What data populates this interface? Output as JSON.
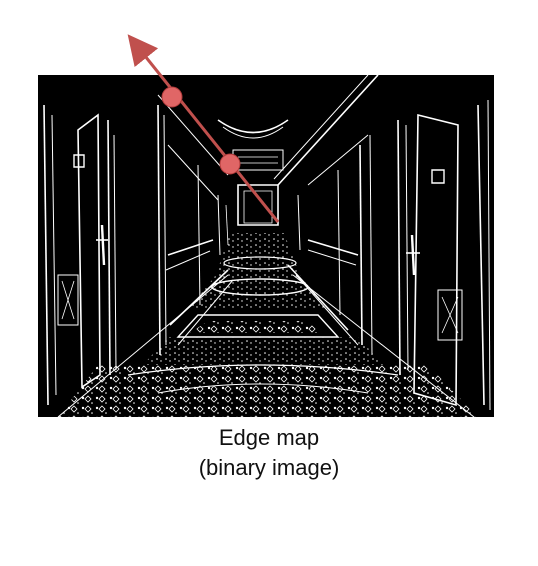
{
  "figure": {
    "caption_line_1": "Edge map",
    "caption_line_2": "(binary image)"
  },
  "image": {
    "background_color": "#000000",
    "edge_color": "#ffffff",
    "subject": "hallway-edge-map"
  },
  "overlay": {
    "line_color": "#c0504d",
    "point_color": "#e06666",
    "arrow_direction": "up-left"
  }
}
